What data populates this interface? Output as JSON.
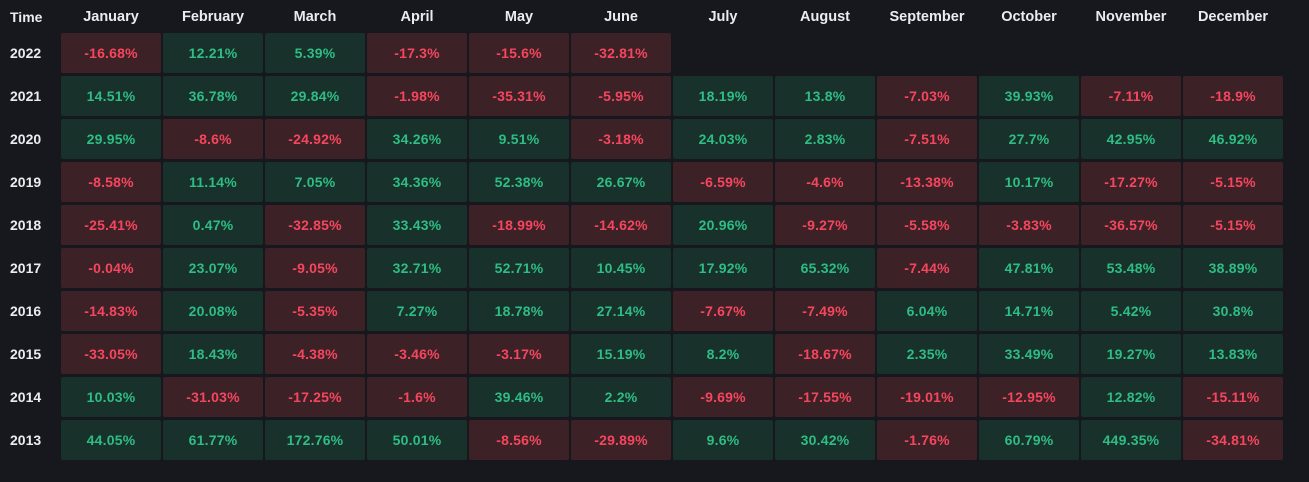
{
  "chart_data": {
    "type": "heatmap",
    "time_label": "Time",
    "months": [
      "January",
      "February",
      "March",
      "April",
      "May",
      "June",
      "July",
      "August",
      "September",
      "October",
      "November",
      "December"
    ],
    "rows": [
      {
        "year": "2022",
        "values": [
          "-16.68%",
          "12.21%",
          "5.39%",
          "-17.3%",
          "-15.6%",
          "-32.81%",
          null,
          null,
          null,
          null,
          null,
          null
        ]
      },
      {
        "year": "2021",
        "values": [
          "14.51%",
          "36.78%",
          "29.84%",
          "-1.98%",
          "-35.31%",
          "-5.95%",
          "18.19%",
          "13.8%",
          "-7.03%",
          "39.93%",
          "-7.11%",
          "-18.9%"
        ]
      },
      {
        "year": "2020",
        "values": [
          "29.95%",
          "-8.6%",
          "-24.92%",
          "34.26%",
          "9.51%",
          "-3.18%",
          "24.03%",
          "2.83%",
          "-7.51%",
          "27.7%",
          "42.95%",
          "46.92%"
        ]
      },
      {
        "year": "2019",
        "values": [
          "-8.58%",
          "11.14%",
          "7.05%",
          "34.36%",
          "52.38%",
          "26.67%",
          "-6.59%",
          "-4.6%",
          "-13.38%",
          "10.17%",
          "-17.27%",
          "-5.15%"
        ]
      },
      {
        "year": "2018",
        "values": [
          "-25.41%",
          "0.47%",
          "-32.85%",
          "33.43%",
          "-18.99%",
          "-14.62%",
          "20.96%",
          "-9.27%",
          "-5.58%",
          "-3.83%",
          "-36.57%",
          "-5.15%"
        ]
      },
      {
        "year": "2017",
        "values": [
          "-0.04%",
          "23.07%",
          "-9.05%",
          "32.71%",
          "52.71%",
          "10.45%",
          "17.92%",
          "65.32%",
          "-7.44%",
          "47.81%",
          "53.48%",
          "38.89%"
        ]
      },
      {
        "year": "2016",
        "values": [
          "-14.83%",
          "20.08%",
          "-5.35%",
          "7.27%",
          "18.78%",
          "27.14%",
          "-7.67%",
          "-7.49%",
          "6.04%",
          "14.71%",
          "5.42%",
          "30.8%"
        ]
      },
      {
        "year": "2015",
        "values": [
          "-33.05%",
          "18.43%",
          "-4.38%",
          "-3.46%",
          "-3.17%",
          "15.19%",
          "8.2%",
          "-18.67%",
          "2.35%",
          "33.49%",
          "19.27%",
          "13.83%"
        ]
      },
      {
        "year": "2014",
        "values": [
          "10.03%",
          "-31.03%",
          "-17.25%",
          "-1.6%",
          "39.46%",
          "2.2%",
          "-9.69%",
          "-17.55%",
          "-19.01%",
          "-12.95%",
          "12.82%",
          "-15.11%"
        ]
      },
      {
        "year": "2013",
        "values": [
          "44.05%",
          "61.77%",
          "172.76%",
          "50.01%",
          "-8.56%",
          "-29.89%",
          "9.6%",
          "30.42%",
          "-1.76%",
          "60.79%",
          "449.35%",
          "-34.81%"
        ]
      }
    ],
    "colors": {
      "background": "#17181d",
      "header_text": "#eaecef",
      "positive_text": "#2ebd85",
      "negative_text": "#f6465d",
      "positive_cell_bg": "#18312a",
      "negative_cell_bg": "#3c2127"
    },
    "legend_position": "none",
    "grid": false
  }
}
